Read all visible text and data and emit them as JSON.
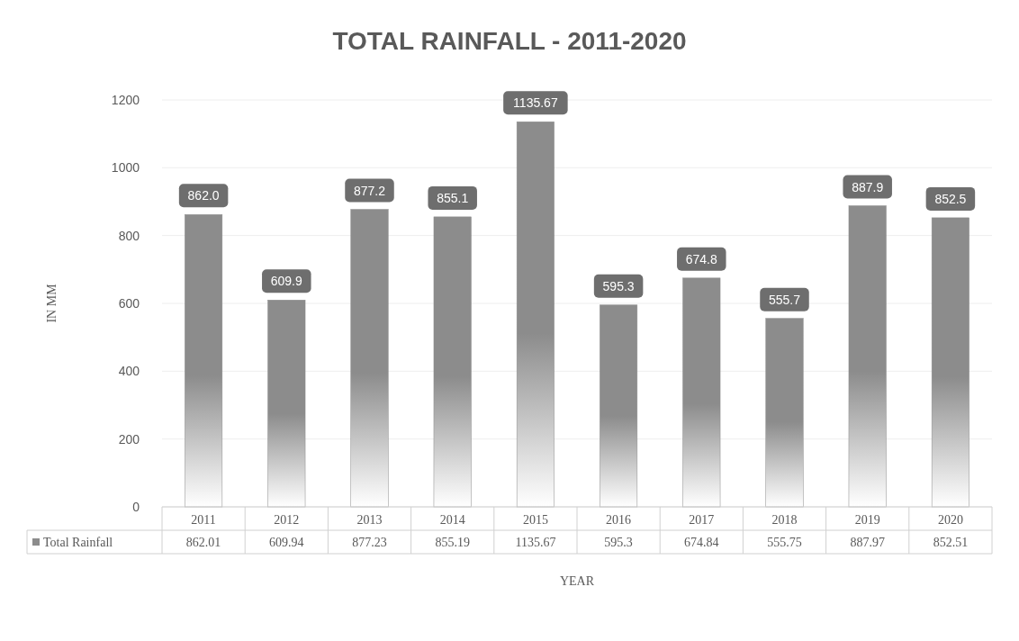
{
  "chart_data": {
    "type": "bar",
    "title": "TOTAL RAINFALL - 2011-2020",
    "xlabel": "YEAR",
    "ylabel": "IN MM",
    "categories": [
      "2011",
      "2012",
      "2013",
      "2014",
      "2015",
      "2016",
      "2017",
      "2018",
      "2019",
      "2020"
    ],
    "series": [
      {
        "name": "Total Rainfall",
        "color": "#8c8c8c",
        "values": [
          862.01,
          609.94,
          877.23,
          855.19,
          1135.67,
          595.3,
          674.84,
          555.75,
          887.97,
          852.51
        ],
        "value_labels": [
          "862.01",
          "609.94",
          "877.23",
          "855.19",
          "1135.67",
          "595.3",
          "674.84",
          "555.75",
          "887.97",
          "852.51"
        ]
      }
    ],
    "annotations": [
      {
        "text": "862.0",
        "x": "2011",
        "y": 862.01
      },
      {
        "text": "609.9",
        "x": "2012",
        "y": 609.94
      },
      {
        "text": "877.2",
        "x": "2013",
        "y": 877.23
      },
      {
        "text": "855.1",
        "x": "2014",
        "y": 855.19
      },
      {
        "text": "1135.67",
        "x": "2015",
        "y": 1135.67
      },
      {
        "text": "595.3",
        "x": "2016",
        "y": 595.3
      },
      {
        "text": "674.8",
        "x": "2017",
        "y": 674.84
      },
      {
        "text": "555.7",
        "x": "2018",
        "y": 555.75
      },
      {
        "text": "887.9",
        "x": "2019",
        "y": 887.97
      },
      {
        "text": "852.5",
        "x": "2020",
        "y": 852.51
      }
    ],
    "ylim": [
      0,
      1200
    ],
    "yticks": [
      0,
      200,
      400,
      600,
      800,
      1000,
      1200
    ],
    "grid": "y",
    "legend": "bottom"
  }
}
